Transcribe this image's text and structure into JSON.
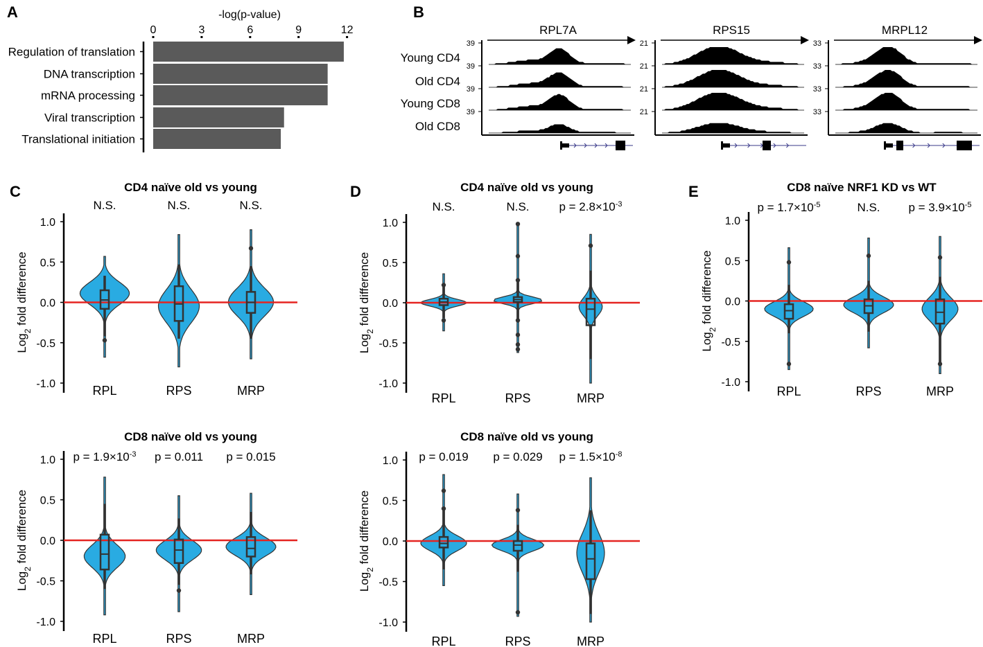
{
  "chart_data": [
    {
      "id": "A",
      "panel_label": "A",
      "type": "bar",
      "orientation": "horizontal",
      "title": "-log(p-value)",
      "categories": [
        "Regulation of translation",
        "DNA transcription",
        "mRNA processing",
        "Viral transcription",
        "Translational initiation"
      ],
      "values": [
        11.8,
        10.8,
        10.8,
        8.1,
        7.9
      ],
      "xlim": [
        0,
        12
      ],
      "xticks": [
        "0",
        "3",
        "6",
        "9",
        "12"
      ],
      "bar_color": "#5a5a5a"
    },
    {
      "id": "B",
      "panel_label": "B",
      "type": "genome-tracks",
      "tracks": [
        "Young CD4",
        "Old CD4",
        "Young CD8",
        "Old CD8"
      ],
      "genes": [
        {
          "name": "RPL7A",
          "scale": "39"
        },
        {
          "name": "RPS15",
          "scale": "21"
        },
        {
          "name": "MRPL12",
          "scale": "33"
        }
      ]
    },
    {
      "id": "C1",
      "panel_label": "C",
      "type": "violin",
      "title": "CD4 naïve old vs young",
      "ylabel": "Log2 fold difference",
      "ylim": [
        -1.0,
        1.0
      ],
      "yticks": [
        "1.0",
        "0.5",
        "0.0",
        "-0.5",
        "-1.0"
      ],
      "categories": [
        "RPL",
        "RPS",
        "MRP"
      ],
      "pvalues": [
        "N.S.",
        "N.S.",
        "N.S."
      ],
      "groups": [
        {
          "name": "RPL",
          "min": -0.68,
          "max": 0.57,
          "q1": -0.08,
          "median": 0.03,
          "q3": 0.15,
          "wlo": -0.42,
          "whi": 0.33,
          "mode": 0.12,
          "spread": 0.2,
          "width": 0.92,
          "outliers": [
            -0.47
          ]
        },
        {
          "name": "RPS",
          "min": -0.8,
          "max": 0.84,
          "q1": -0.23,
          "median": -0.02,
          "q3": 0.2,
          "wlo": -0.45,
          "whi": 0.47,
          "mode": -0.05,
          "spread": 0.3,
          "width": 0.74,
          "outliers": []
        },
        {
          "name": "MRP",
          "min": -0.7,
          "max": 0.9,
          "q1": -0.13,
          "median": 0.0,
          "q3": 0.13,
          "wlo": -0.45,
          "whi": 0.45,
          "mode": 0.0,
          "spread": 0.25,
          "width": 0.82,
          "outliers": [
            0.67
          ]
        }
      ]
    },
    {
      "id": "C2",
      "panel_label": "",
      "type": "violin",
      "title": "CD8 naïve old vs young",
      "ylabel": "Log2 fold difference",
      "ylim": [
        -1.0,
        1.0
      ],
      "yticks": [
        "1.0",
        "0.5",
        "0.0",
        "-0.5",
        "-1.0"
      ],
      "categories": [
        "RPL",
        "RPS",
        "MRP"
      ],
      "pvalues": [
        "p = 1.9×10",
        "p = 0.011",
        "p = 0.015"
      ],
      "pexp": [
        "-3",
        "",
        ""
      ],
      "groups": [
        {
          "name": "RPL",
          "min": -0.92,
          "max": 0.78,
          "q1": -0.36,
          "median": -0.17,
          "q3": 0.07,
          "wlo": -0.6,
          "whi": 0.45,
          "mode": -0.2,
          "spread": 0.2,
          "width": 0.75,
          "outliers": []
        },
        {
          "name": "RPS",
          "min": -0.88,
          "max": 0.55,
          "q1": -0.28,
          "median": -0.12,
          "q3": 0.01,
          "wlo": -0.55,
          "whi": 0.27,
          "mode": -0.12,
          "spread": 0.17,
          "width": 0.82,
          "outliers": [
            -0.62
          ]
        },
        {
          "name": "MRP",
          "min": -0.67,
          "max": 0.58,
          "q1": -0.2,
          "median": -0.1,
          "q3": 0.04,
          "wlo": -0.42,
          "whi": 0.35,
          "mode": -0.08,
          "spread": 0.16,
          "width": 0.9,
          "outliers": []
        }
      ]
    },
    {
      "id": "D1",
      "panel_label": "D",
      "type": "violin",
      "title": "CD4 naïve old vs young",
      "ylabel": "Log2 fold difference",
      "ylim": [
        -1.0,
        1.0
      ],
      "yticks": [
        "1.0",
        "0.5",
        "0.0",
        "-0.5",
        "-1.0"
      ],
      "categories": [
        "RPL",
        "RPS",
        "MRP"
      ],
      "pvalues": [
        "N.S.",
        "N.S.",
        "p = 2.8×10"
      ],
      "pexp": [
        "",
        "",
        "-3"
      ],
      "groups": [
        {
          "name": "RPL",
          "min": -0.35,
          "max": 0.36,
          "q1": -0.03,
          "median": 0.01,
          "q3": 0.05,
          "wlo": -0.19,
          "whi": 0.2,
          "mode": 0.0,
          "spread": 0.06,
          "width": 0.82,
          "outliers": [
            0.22,
            -0.22
          ]
        },
        {
          "name": "RPS",
          "min": -0.62,
          "max": 0.98,
          "q1": 0.01,
          "median": 0.04,
          "q3": 0.07,
          "wlo": -0.2,
          "whi": 0.3,
          "mode": 0.03,
          "spread": 0.06,
          "width": 0.9,
          "outliers": [
            0.98,
            0.58,
            0.28,
            -0.22,
            -0.4,
            -0.52,
            -0.58
          ]
        },
        {
          "name": "MRP",
          "min": -1.0,
          "max": 0.85,
          "q1": -0.28,
          "median": -0.08,
          "q3": 0.05,
          "wlo": -0.7,
          "whi": 0.4,
          "mode": -0.05,
          "spread": 0.16,
          "width": 0.42,
          "outliers": [
            0.71
          ]
        }
      ]
    },
    {
      "id": "D2",
      "panel_label": "",
      "type": "violin",
      "title": "CD8 naïve old vs young",
      "ylabel": "Log2 fold difference",
      "ylim": [
        -1.0,
        1.0
      ],
      "yticks": [
        "1.0",
        "0.5",
        "0.0",
        "-0.5",
        "-1.0"
      ],
      "categories": [
        "RPL",
        "RPS",
        "MRP"
      ],
      "pvalues": [
        "p = 0.019",
        "p = 0.029",
        "p = 1.5×10"
      ],
      "pexp": [
        "",
        "",
        "-8"
      ],
      "groups": [
        {
          "name": "RPL",
          "min": -0.55,
          "max": 0.82,
          "q1": -0.08,
          "median": -0.03,
          "q3": 0.05,
          "wlo": -0.35,
          "whi": 0.38,
          "mode": -0.03,
          "spread": 0.13,
          "width": 0.85,
          "outliers": [
            0.62,
            0.4
          ]
        },
        {
          "name": "RPS",
          "min": -0.93,
          "max": 0.58,
          "q1": -0.12,
          "median": -0.05,
          "q3": 0.0,
          "wlo": -0.38,
          "whi": 0.2,
          "mode": -0.05,
          "spread": 0.1,
          "width": 0.95,
          "outliers": [
            0.38,
            -0.88
          ]
        },
        {
          "name": "MRP",
          "min": -1.0,
          "max": 0.78,
          "q1": -0.47,
          "median": -0.22,
          "q3": -0.03,
          "wlo": -0.9,
          "whi": 0.38,
          "mode": -0.15,
          "spread": 0.35,
          "width": 0.5,
          "outliers": []
        }
      ]
    },
    {
      "id": "E",
      "panel_label": "E",
      "type": "violin",
      "title": "CD8 naïve NRF1 KD vs WT",
      "ylabel": "Log2 fold difference",
      "ylim": [
        -1.0,
        1.0
      ],
      "yticks": [
        "1.0",
        "0.5",
        "0.0",
        "-0.5",
        "-1.0"
      ],
      "categories": [
        "RPL",
        "RPS",
        "MRP"
      ],
      "pvalues": [
        "p = 1.7×10",
        "N.S.",
        "p = 3.9×10"
      ],
      "pexp": [
        "-5",
        "",
        "-5"
      ],
      "groups": [
        {
          "name": "RPL",
          "min": -0.85,
          "max": 0.66,
          "q1": -0.22,
          "median": -0.12,
          "q3": -0.04,
          "wlo": -0.4,
          "whi": 0.2,
          "mode": -0.1,
          "spread": 0.13,
          "width": 0.88,
          "outliers": [
            0.48,
            -0.78
          ]
        },
        {
          "name": "RPS",
          "min": -0.58,
          "max": 0.78,
          "q1": -0.15,
          "median": -0.06,
          "q3": 0.02,
          "wlo": -0.38,
          "whi": 0.25,
          "mode": -0.05,
          "spread": 0.14,
          "width": 0.92,
          "outliers": [
            0.56
          ]
        },
        {
          "name": "MRP",
          "min": -0.9,
          "max": 0.8,
          "q1": -0.28,
          "median": -0.14,
          "q3": 0.02,
          "wlo": -0.8,
          "whi": 0.3,
          "mode": -0.1,
          "spread": 0.2,
          "width": 0.65,
          "outliers": [
            0.54,
            -0.78
          ]
        }
      ]
    }
  ],
  "style": {
    "violin_fill": "#29ABE2",
    "zero_line": "#E52421",
    "box_stroke": "#333333",
    "bar_fill": "#5a5a5a"
  }
}
